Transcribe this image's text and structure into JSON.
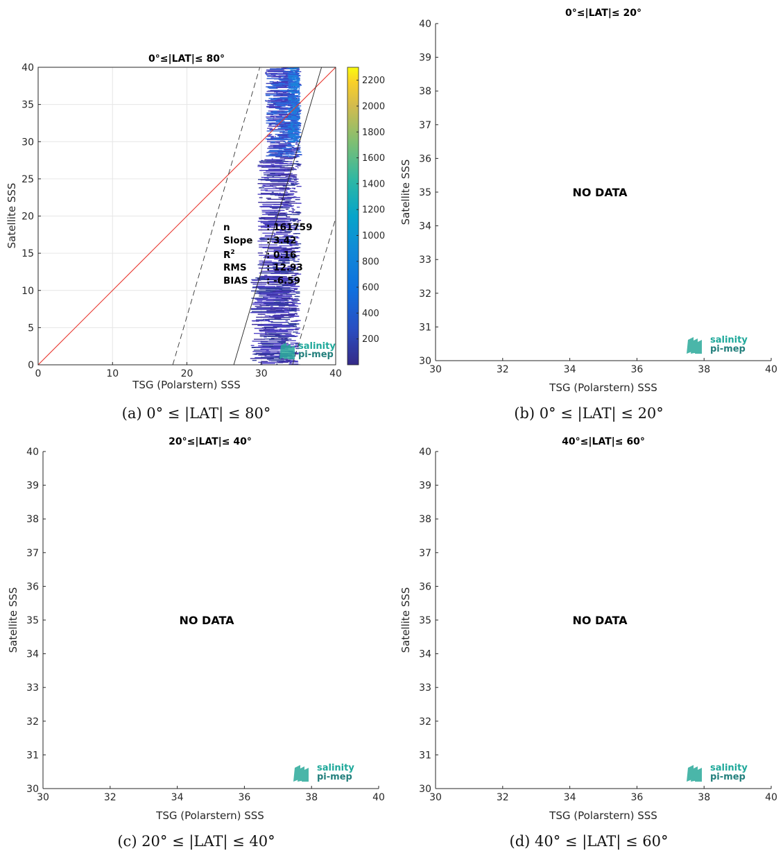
{
  "colors": {
    "identity_line": "#e8342c",
    "axis": "#262626",
    "grid": "#e6e6e6",
    "logo_primary": "#1ea89a",
    "logo_secondary": "#237f7c"
  },
  "logo": {
    "line1": "salinity",
    "line2": "pi-mep"
  },
  "panels": [
    {
      "title": "0°≤|LAT|≤ 80°",
      "caption": "(a) 0° ≤ |LAT| ≤ 80°",
      "xlabel": "TSG (Polarstern) SSS",
      "ylabel": "Satellite SSS",
      "stats": {
        "labels": [
          "n",
          "Slope",
          "R2",
          "RMS",
          "BIAS"
        ],
        "values": [
          ": 161759",
          ": 3.42",
          ": 0.16",
          ": 12.93",
          ": -6.59"
        ]
      },
      "colorbar": {
        "ticks": [
          200,
          400,
          600,
          800,
          1000,
          1200,
          1400,
          1600,
          1800,
          2000,
          2200
        ],
        "range": [
          0,
          2300
        ],
        "colormap": "parula"
      }
    },
    {
      "title": "0°≤|LAT|≤ 20°",
      "caption": "(b) 0° ≤ |LAT| ≤ 20°",
      "xlabel": "TSG (Polarstern) SSS",
      "ylabel": "Satellite SSS",
      "nodata": "NO DATA"
    },
    {
      "title": "20°≤|LAT|≤ 40°",
      "caption": "(c) 20° ≤ |LAT| ≤ 40°",
      "xlabel": "TSG (Polarstern) SSS",
      "ylabel": "Satellite SSS",
      "nodata": "NO DATA"
    },
    {
      "title": "40°≤|LAT|≤ 60°",
      "caption": "(d) 40° ≤ |LAT| ≤ 60°",
      "xlabel": "TSG (Polarstern) SSS",
      "ylabel": "Satellite SSS",
      "nodata": "NO DATA"
    }
  ],
  "chart_data": [
    {
      "type": "heatmap",
      "title": "0°≤|LAT|≤ 80°",
      "xlabel": "TSG (Polarstern) SSS",
      "ylabel": "Satellite SSS",
      "xlim": [
        0,
        40
      ],
      "ylim": [
        0,
        40
      ],
      "xticks": [
        0,
        10,
        20,
        30,
        40
      ],
      "yticks": [
        0,
        5,
        10,
        15,
        20,
        25,
        30,
        35,
        40
      ],
      "grid": true,
      "identity_line": {
        "x": [
          0,
          40
        ],
        "y": [
          0,
          40
        ]
      },
      "fit_line": {
        "x": [
          26.3,
          38.1
        ],
        "y": [
          0,
          40
        ]
      },
      "dashed_lines": [
        {
          "x": [
            18.1,
            29.8
          ],
          "y": [
            0,
            40
          ]
        },
        {
          "x": [
            34.2,
            40
          ],
          "y": [
            0,
            19.7
          ]
        }
      ],
      "density_clusters": [
        {
          "x": [
            28.5,
            35.5
          ],
          "y": [
            0,
            12
          ],
          "level": "low"
        },
        {
          "x": [
            29.5,
            35.5
          ],
          "y": [
            12,
            28
          ],
          "level": "low"
        },
        {
          "x": [
            30.5,
            35.5
          ],
          "y": [
            28,
            40
          ],
          "level": "medium"
        },
        {
          "x": [
            33.5,
            35.2
          ],
          "y": [
            30,
            40
          ],
          "level": "high"
        }
      ],
      "colorbar": {
        "min": 0,
        "max": 2300,
        "ticks": [
          200,
          400,
          600,
          800,
          1000,
          1200,
          1400,
          1600,
          1800,
          2000,
          2200
        ]
      },
      "stats": {
        "n": 161759,
        "slope": 3.42,
        "r2": 0.16,
        "rms": 12.93,
        "bias": -6.59
      }
    },
    {
      "type": "scatter",
      "title": "0°≤|LAT|≤ 20°",
      "xlabel": "TSG (Polarstern) SSS",
      "ylabel": "Satellite SSS",
      "xlim": [
        30,
        40
      ],
      "ylim": [
        30,
        40
      ],
      "xticks": [
        30,
        32,
        34,
        36,
        38,
        40
      ],
      "yticks": [
        30,
        31,
        32,
        33,
        34,
        35,
        36,
        37,
        38,
        39,
        40
      ],
      "points": [],
      "annotation": "NO DATA"
    },
    {
      "type": "scatter",
      "title": "20°≤|LAT|≤ 40°",
      "xlabel": "TSG (Polarstern) SSS",
      "ylabel": "Satellite SSS",
      "xlim": [
        30,
        40
      ],
      "ylim": [
        30,
        40
      ],
      "xticks": [
        30,
        32,
        34,
        36,
        38,
        40
      ],
      "yticks": [
        30,
        31,
        32,
        33,
        34,
        35,
        36,
        37,
        38,
        39,
        40
      ],
      "points": [],
      "annotation": "NO DATA"
    },
    {
      "type": "scatter",
      "title": "40°≤|LAT|≤ 60°",
      "xlabel": "TSG (Polarstern) SSS",
      "ylabel": "Satellite SSS",
      "xlim": [
        30,
        40
      ],
      "ylim": [
        30,
        40
      ],
      "xticks": [
        30,
        32,
        34,
        36,
        38,
        40
      ],
      "yticks": [
        30,
        31,
        32,
        33,
        34,
        35,
        36,
        37,
        38,
        39,
        40
      ],
      "points": [],
      "annotation": "NO DATA"
    }
  ]
}
